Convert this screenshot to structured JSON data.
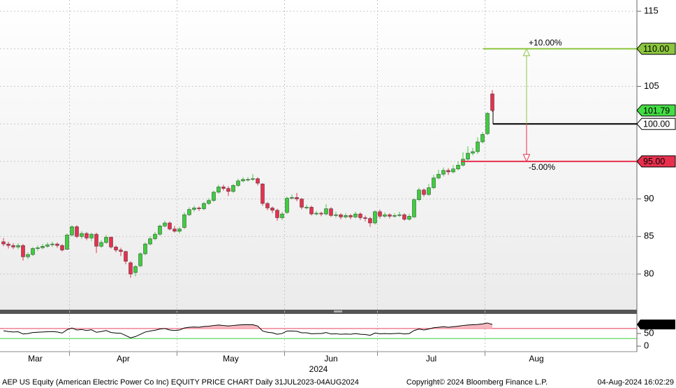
{
  "chart_data": [
    {
      "type": "candlestick",
      "categories": [
        "Mar",
        null,
        null,
        null,
        null,
        null,
        null,
        null,
        null,
        null,
        null,
        null,
        null,
        null,
        "Apr",
        null,
        null,
        null,
        null,
        null,
        null,
        null,
        null,
        null,
        null,
        null,
        null,
        null,
        null,
        null,
        null,
        null,
        null,
        null,
        null,
        null,
        "May",
        null,
        null,
        null,
        null,
        null,
        null,
        null,
        null,
        null,
        null,
        null,
        null,
        null,
        null,
        null,
        null,
        null,
        null,
        null,
        null,
        null,
        "Jun",
        null,
        null,
        null,
        null,
        null,
        null,
        null,
        null,
        null,
        null,
        null,
        null,
        null,
        null,
        null,
        null,
        null,
        null,
        "Jul",
        null,
        null,
        null,
        null,
        null,
        null,
        null,
        null,
        null,
        null,
        null,
        null,
        null,
        null,
        null,
        null,
        null,
        null,
        null,
        null,
        null,
        "Aug",
        null
      ],
      "xlabel": "2024",
      "open": [
        84.3,
        84.0,
        83.8,
        83.6,
        83.8,
        82.3,
        82.6,
        83.4,
        83.5,
        83.7,
        83.9,
        84.0,
        83.8,
        83.3,
        85.2,
        86.3,
        85.0,
        85.4,
        84.8,
        85.3,
        83.7,
        84.2,
        84.9,
        83.6,
        83.2,
        83.0,
        81.5,
        80.2,
        81.1,
        82.7,
        84.0,
        84.7,
        85.3,
        86.4,
        86.8,
        86.0,
        85.7,
        86.2,
        87.9,
        88.6,
        88.8,
        88.7,
        89.4,
        89.8,
        90.9,
        91.6,
        91.4,
        91.0,
        91.8,
        92.4,
        92.6,
        92.6,
        92.7,
        92.0,
        89.4,
        88.8,
        88.5,
        87.5,
        88.2,
        90.1,
        90.2,
        90.0,
        88.9,
        88.9,
        88.0,
        88.1,
        88.0,
        88.7,
        87.8,
        87.9,
        87.6,
        87.8,
        87.6,
        88.0,
        87.5,
        87.4,
        86.8,
        88.3,
        87.7,
        87.9,
        87.7,
        87.8,
        87.9,
        87.3,
        87.6,
        89.9,
        91.2,
        90.6,
        91.5,
        92.8,
        93.3,
        93.8,
        93.6,
        94.0,
        94.5,
        95.3,
        96.1,
        96.3,
        97.6,
        98.7,
        104.0
      ],
      "high": [
        84.8,
        84.3,
        84.1,
        84.1,
        84.0,
        82.9,
        83.6,
        83.8,
        84.0,
        84.2,
        84.3,
        84.2,
        84.0,
        85.4,
        86.5,
        86.5,
        85.7,
        85.6,
        85.5,
        85.5,
        84.5,
        85.2,
        85.0,
        83.8,
        83.5,
        83.1,
        81.7,
        81.2,
        82.9,
        84.2,
        85.0,
        85.6,
        86.6,
        87.1,
        87.0,
        86.4,
        86.3,
        88.2,
        88.9,
        89.1,
        89.0,
        89.6,
        90.1,
        91.1,
        91.9,
        91.9,
        91.7,
        92.0,
        92.7,
        92.9,
        92.9,
        93.3,
        92.9,
        92.1,
        89.6,
        89.0,
        88.7,
        88.3,
        90.3,
        90.6,
        90.8,
        90.1,
        89.2,
        89.1,
        88.4,
        88.3,
        89.3,
        88.9,
        88.3,
        88.1,
        88.1,
        88.0,
        88.3,
        88.2,
        87.8,
        87.6,
        88.5,
        88.6,
        88.2,
        88.1,
        88.1,
        88.3,
        88.1,
        88.0,
        90.1,
        91.5,
        91.4,
        92.0,
        93.2,
        93.9,
        94.2,
        94.1,
        94.5,
        95.0,
        96.2,
        97.0,
        96.8,
        98.2,
        98.9,
        101.6,
        104.5
      ],
      "low": [
        83.7,
        83.4,
        83.3,
        83.3,
        81.8,
        82.0,
        82.4,
        83.1,
        83.3,
        83.5,
        83.6,
        83.5,
        83.0,
        83.2,
        85.0,
        84.8,
        84.7,
        84.5,
        84.4,
        82.8,
        83.5,
        84.0,
        83.4,
        82.9,
        82.4,
        81.3,
        79.5,
        79.7,
        80.9,
        82.5,
        83.8,
        84.5,
        85.1,
        86.2,
        85.8,
        85.5,
        85.4,
        86.0,
        87.7,
        88.3,
        88.4,
        88.5,
        89.2,
        89.6,
        90.7,
        91.1,
        90.4,
        90.8,
        91.6,
        92.2,
        92.3,
        92.4,
        91.8,
        89.1,
        88.5,
        88.1,
        87.1,
        87.2,
        88.0,
        89.9,
        89.7,
        88.6,
        88.6,
        87.8,
        87.8,
        87.7,
        87.8,
        87.6,
        87.5,
        87.3,
        87.4,
        87.3,
        87.4,
        87.2,
        87.0,
        86.3,
        86.6,
        87.4,
        87.5,
        87.4,
        87.5,
        87.6,
        87.1,
        87.1,
        87.5,
        89.7,
        90.3,
        90.4,
        91.3,
        92.6,
        93.0,
        93.2,
        93.4,
        93.8,
        94.3,
        95.0,
        95.8,
        96.0,
        97.4,
        98.5,
        101.6
      ],
      "close": [
        84.0,
        83.8,
        83.6,
        83.8,
        82.3,
        82.6,
        83.4,
        83.5,
        83.7,
        83.9,
        84.0,
        83.8,
        83.2,
        85.2,
        86.3,
        85.0,
        85.4,
        84.8,
        85.3,
        83.7,
        84.2,
        84.9,
        83.6,
        83.2,
        83.0,
        81.7,
        80.0,
        81.0,
        82.7,
        84.0,
        84.7,
        85.3,
        86.4,
        86.8,
        86.0,
        85.7,
        86.0,
        87.9,
        88.6,
        88.8,
        88.7,
        89.4,
        89.8,
        90.9,
        91.6,
        91.4,
        91.0,
        91.8,
        92.4,
        92.6,
        92.6,
        92.7,
        92.1,
        89.4,
        88.8,
        88.5,
        87.5,
        88.0,
        90.1,
        90.2,
        90.0,
        88.9,
        88.9,
        88.0,
        88.1,
        88.0,
        88.7,
        87.8,
        87.9,
        87.6,
        87.8,
        87.6,
        88.0,
        87.5,
        87.4,
        86.8,
        88.3,
        87.7,
        87.9,
        87.7,
        87.8,
        87.9,
        87.3,
        87.7,
        89.9,
        91.2,
        90.6,
        91.5,
        92.8,
        93.3,
        93.8,
        93.6,
        94.0,
        94.5,
        95.3,
        96.1,
        96.3,
        97.6,
        98.6,
        101.4,
        101.79
      ],
      "up_color": "#3ccf3c",
      "down_color": "#e8304e",
      "ylim": [
        75.25,
        116.5
      ],
      "yticks": [
        80,
        85,
        90,
        95,
        100,
        105,
        110,
        115
      ],
      "grid": true,
      "levels": {
        "target_up": {
          "value": 110,
          "label": "110.00",
          "pct": "+10.00%",
          "color": "#8cc63f"
        },
        "base": {
          "value": 100,
          "label": "100.00",
          "color": "#000000"
        },
        "target_down": {
          "value": 95,
          "label": "95.00",
          "pct": "-5.00%",
          "color": "#e8304e"
        }
      }
    },
    {
      "type": "line",
      "series": [
        {
          "color": "#000000",
          "values": [
            61,
            58,
            56,
            57,
            48,
            50,
            54,
            55,
            56,
            57,
            58,
            56,
            52,
            65,
            72,
            64,
            66,
            62,
            65,
            55,
            58,
            62,
            54,
            52,
            51,
            42,
            33,
            38,
            47,
            56,
            60,
            63,
            68,
            70,
            64,
            62,
            64,
            72,
            75,
            76,
            75,
            78,
            79,
            82,
            84,
            82,
            80,
            82,
            84,
            85,
            85,
            85,
            80,
            60,
            55,
            53,
            47,
            50,
            60,
            60,
            59,
            53,
            53,
            49,
            50,
            50,
            54,
            48,
            49,
            47,
            48,
            47,
            50,
            47,
            46,
            43,
            52,
            49,
            50,
            49,
            50,
            51,
            48,
            50,
            62,
            68,
            64,
            68,
            73,
            75,
            77,
            75,
            77,
            79,
            82,
            84,
            85,
            86,
            88,
            92,
            85.9357
          ]
        }
      ],
      "ylim": [
        -22,
        128
      ],
      "yticks": [
        0,
        50
      ],
      "bands": {
        "upper": 70,
        "lower": 30,
        "upper_color": "#e8304e",
        "lower_color": "#3ccf3c"
      }
    }
  ],
  "footer": {
    "left": "AEP US Equity (American Electric Power Co Inc) EQUITY PRICE CHART  Daily 31JUL2023-04AUG2024",
    "center": "Copyright© 2024 Bloomberg Finance L.P.",
    "right": "04-Aug-2024 16:02:29"
  }
}
